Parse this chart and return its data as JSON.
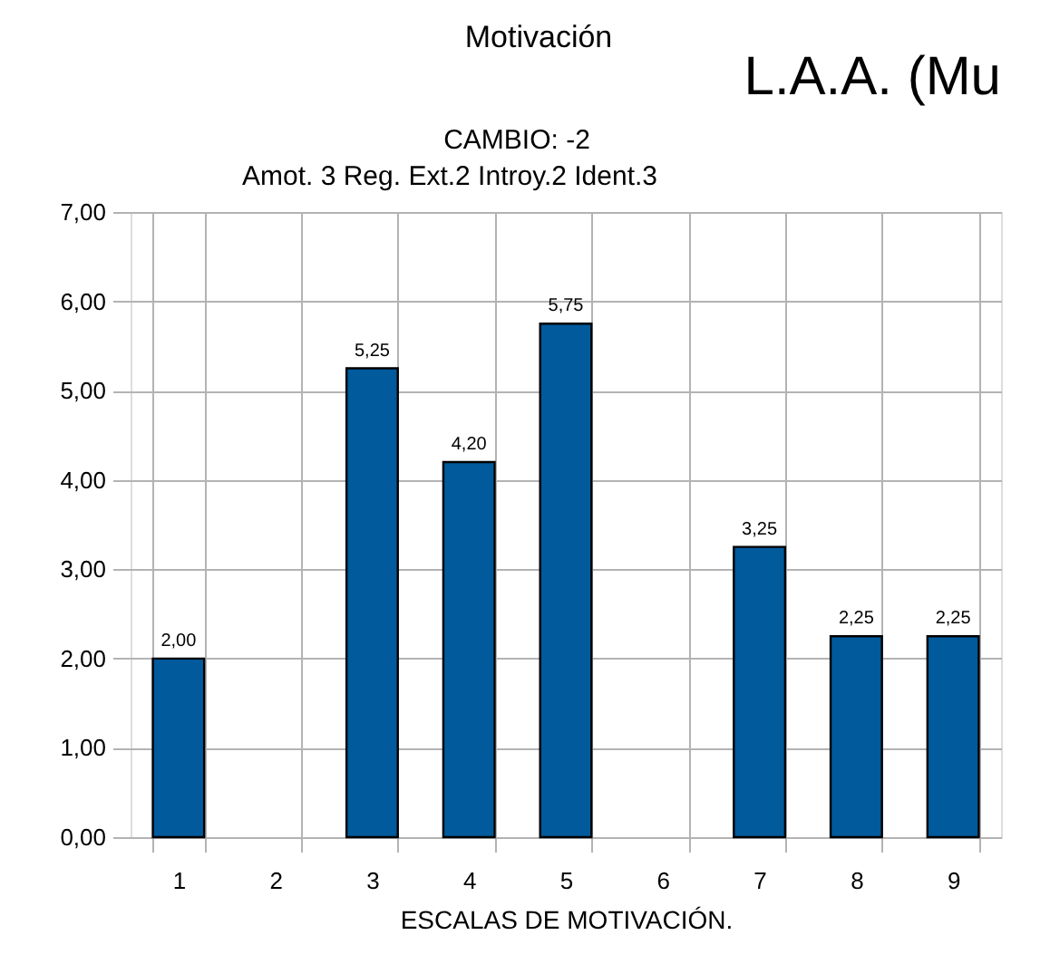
{
  "chart_data": {
    "type": "bar",
    "title": "Motivación",
    "subtitle": "CAMBIO: -2",
    "xlabel": "ESCALAS DE MOTIVACIÓN.",
    "annotations": [
      "L.A.A. (Mu",
      "Amot. 3 Reg. Ext.2 Introy.2 Ident.3"
    ],
    "categories": [
      "1",
      "2",
      "3",
      "4",
      "5",
      "6",
      "7",
      "8",
      "9"
    ],
    "values": [
      2.0,
      null,
      5.25,
      4.2,
      5.75,
      null,
      3.25,
      2.25,
      2.25
    ],
    "value_labels": [
      "2,00",
      null,
      "5,25",
      "4,20",
      "5,75",
      null,
      "3,25",
      "2,25",
      "2,25"
    ],
    "color": "#005a9c",
    "ylim": [
      0,
      7
    ],
    "yticks": [
      {
        "value": 0,
        "label": "0,00"
      },
      {
        "value": 1,
        "label": "1,00"
      },
      {
        "value": 2,
        "label": "2,00"
      },
      {
        "value": 3,
        "label": "3,00"
      },
      {
        "value": 4,
        "label": "4,00"
      },
      {
        "value": 5,
        "label": "5,00"
      },
      {
        "value": 6,
        "label": "6,00"
      },
      {
        "value": 7,
        "label": "7,00"
      }
    ],
    "grid": true
  }
}
